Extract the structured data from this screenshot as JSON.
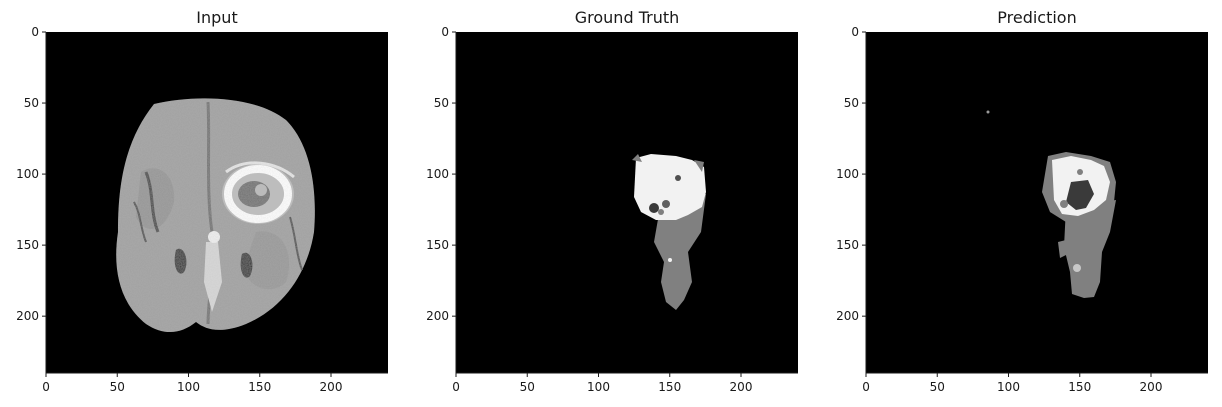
{
  "panels": [
    {
      "id": "input",
      "title": "Input",
      "xticks": [
        "0",
        "50",
        "100",
        "150",
        "200"
      ],
      "yticks": [
        "0",
        "50",
        "100",
        "150",
        "200"
      ],
      "xlim": [
        0,
        240
      ],
      "ylim": [
        0,
        240
      ]
    },
    {
      "id": "ground-truth",
      "title": "Ground Truth",
      "xticks": [
        "0",
        "50",
        "100",
        "150",
        "200"
      ],
      "yticks": [
        "0",
        "50",
        "100",
        "150",
        "200"
      ],
      "xlim": [
        0,
        240
      ],
      "ylim": [
        0,
        240
      ]
    },
    {
      "id": "prediction",
      "title": "Prediction",
      "xticks": [
        "0",
        "50",
        "100",
        "150",
        "200"
      ],
      "yticks": [
        "0",
        "50",
        "100",
        "150",
        "200"
      ],
      "xlim": [
        0,
        240
      ],
      "ylim": [
        0,
        240
      ]
    }
  ],
  "colors": {
    "background": "#000000",
    "brain_tissue": "#9a9a9a",
    "enhancing_tumor": "#f2f2f2",
    "edema": "#808080",
    "necrosis": "#3a3a3a"
  }
}
